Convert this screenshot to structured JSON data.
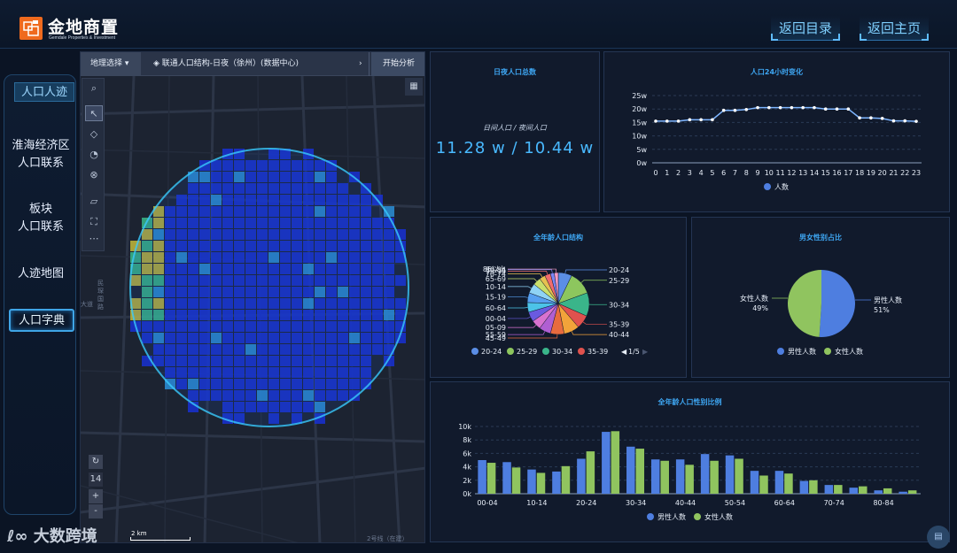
{
  "header": {
    "logo_cn": "金地商置",
    "logo_en": "Gemdale Properties & Investment",
    "back_catalog": "返回目录",
    "back_home": "返回主页"
  },
  "sidebar": {
    "items": [
      {
        "label": "人口人迹"
      },
      {
        "label": "淮海经济区\n人口联系"
      },
      {
        "label": "板块\n人口联系"
      },
      {
        "label": "人迹地图"
      },
      {
        "label": "人口字典"
      }
    ]
  },
  "map": {
    "region_select": "地理选择 ▾",
    "layer_title": "联通人口结构-日夜（徐州）(数据中心)",
    "next_arrow": "›",
    "start_button": "开始分析",
    "zoom_level": "14",
    "scale_label": "2 km",
    "labels": {
      "road1": "民",
      "road2": "琛",
      "road3": "国",
      "road4": "路",
      "road5": "大道",
      "metro": "2号线（在建）"
    },
    "heat_colors": {
      "low": "#1730d4",
      "mid": "#2a8fd8",
      "high": "#39b98a",
      "peak": "#c2b83a"
    }
  },
  "watermark": "大数跨境",
  "population_total": {
    "title": "日夜人口总数",
    "subtitle": "日间人口 / 夜间人口",
    "value": "11.28 w / 10.44 w"
  },
  "hourly": {
    "title": "人口24小时变化",
    "legend": "人数"
  },
  "age_structure": {
    "title": "全年龄人口结构",
    "legend": [
      "20-24",
      "25-29",
      "30-34",
      "35-39"
    ],
    "pager": "1/5"
  },
  "gender": {
    "title": "男女性别占比",
    "male_label": "男性人数",
    "male_pct": "51%",
    "female_label": "女性人数",
    "female_pct": "49%",
    "legend": [
      "男性人数",
      "女性人数"
    ]
  },
  "age_gender": {
    "title": "全年龄人口性别比例",
    "legend": [
      "男性人数",
      "女性人数"
    ]
  },
  "colors": {
    "accent": "#3ea6f2",
    "line": "#7fb6ff",
    "male": "#4e7ee0",
    "female": "#90c45f"
  },
  "chart_data": [
    {
      "type": "line",
      "title": "人口24小时变化",
      "x": [
        "0",
        "1",
        "2",
        "3",
        "4",
        "5",
        "6",
        "7",
        "8",
        "9",
        "10",
        "11",
        "12",
        "13",
        "14",
        "15",
        "16",
        "17",
        "18",
        "19",
        "20",
        "21",
        "22",
        "23"
      ],
      "series": [
        {
          "name": "人数",
          "values": [
            15.5,
            15.5,
            15.5,
            16,
            16,
            16,
            19.5,
            19.5,
            19.8,
            20.5,
            20.5,
            20.5,
            20.5,
            20.5,
            20.5,
            20,
            20,
            20,
            16.7,
            16.7,
            16.5,
            15.6,
            15.6,
            15.4
          ]
        }
      ],
      "y_ticks": [
        "0w",
        "5w",
        "10w",
        "15w",
        "20w",
        "25w"
      ],
      "ylim": [
        0,
        25
      ]
    },
    {
      "type": "pie",
      "title": "全年龄人口结构",
      "categories": [
        "20-24",
        "25-29",
        "30-34",
        "35-39",
        "40-44",
        "45-49",
        "55-59",
        "05-09",
        "00-04",
        "60-64",
        "15-19",
        "10-14",
        "65-69",
        "70-74",
        "75-79",
        "80-84",
        "85以上"
      ],
      "values": [
        7,
        12,
        12,
        7,
        8,
        7,
        6,
        5,
        5,
        5,
        5,
        5,
        4,
        3,
        3,
        2,
        2
      ],
      "colors": [
        "#5b8ee6",
        "#8dc65e",
        "#3ab58a",
        "#e0524e",
        "#f2a33a",
        "#e86b3e",
        "#b05fd2",
        "#d872cf",
        "#6a5ae0",
        "#4cc3e8",
        "#57a0f0",
        "#8fd3f5",
        "#c9df6b",
        "#e6c050",
        "#f06c6c",
        "#7a86f5",
        "#f59ac2"
      ]
    },
    {
      "type": "pie",
      "title": "男女性别占比",
      "categories": [
        "男性人数",
        "女性人数"
      ],
      "values": [
        51,
        49
      ]
    },
    {
      "type": "bar",
      "title": "全年龄人口性别比例",
      "categories": [
        "00-04",
        "05-09",
        "10-14",
        "15-19",
        "20-24",
        "25-29",
        "30-34",
        "35-39",
        "40-44",
        "45-49",
        "50-54",
        "55-59",
        "60-64",
        "65-69",
        "70-74",
        "75-79",
        "80-84",
        "85以上"
      ],
      "x_tick_labels": [
        "00-04",
        "10-14",
        "20-24",
        "30-34",
        "40-44",
        "50-54",
        "60-64",
        "70-74",
        "80-84"
      ],
      "series": [
        {
          "name": "男性人数",
          "values": [
            5000,
            4700,
            3600,
            3300,
            5200,
            9200,
            7000,
            5100,
            5100,
            5900,
            5700,
            3400,
            3400,
            1900,
            1300,
            900,
            500,
            300
          ]
        },
        {
          "name": "女性人数",
          "values": [
            4600,
            3900,
            3100,
            4100,
            6300,
            9300,
            6700,
            4900,
            4300,
            4900,
            5200,
            2700,
            3000,
            2000,
            1300,
            1100,
            800,
            500
          ]
        }
      ],
      "y_ticks": [
        "0k",
        "2k",
        "4k",
        "6k",
        "8k",
        "10k"
      ],
      "ylim": [
        0,
        10000
      ]
    }
  ]
}
